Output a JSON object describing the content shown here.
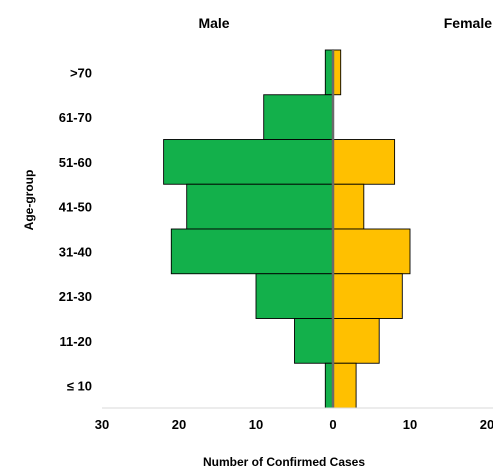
{
  "chart_data": {
    "type": "bar",
    "orientation": "horizontal",
    "layout": "population-pyramid",
    "categories": [
      ">70",
      "61-70",
      "51-60",
      "41-50",
      "31-40",
      "21-30",
      "11-20",
      "≤ 10"
    ],
    "series": [
      {
        "name": "Male",
        "values": [
          1,
          9,
          22,
          19,
          21,
          10,
          5,
          1
        ]
      },
      {
        "name": "Female",
        "values": [
          1,
          0,
          8,
          4,
          10,
          9,
          6,
          3
        ]
      }
    ],
    "colors": {
      "male": "#13b04b",
      "female": "#ffc000",
      "center_line": "#6a6a6a"
    },
    "xlabel": "Number of Confirmed Cases",
    "ylabel": "Age-group",
    "x_ticks": [
      "30",
      "20",
      "10",
      "0",
      "10",
      "20"
    ],
    "xlim": [
      -30,
      20
    ],
    "grid": false,
    "legend": "none"
  }
}
